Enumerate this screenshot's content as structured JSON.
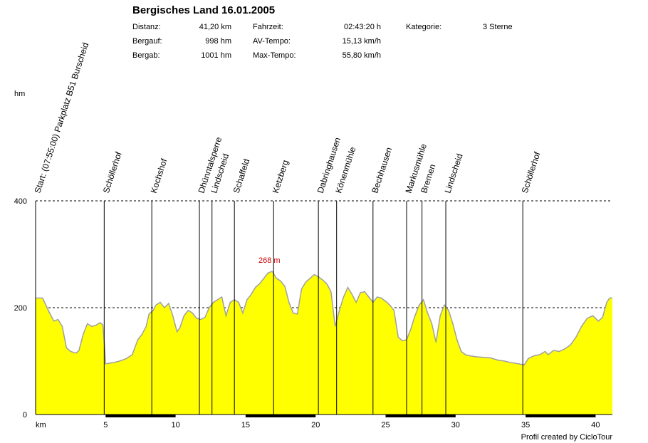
{
  "header": {
    "title": "Bergisches Land 16.01.2005",
    "stats": [
      {
        "label": "Distanz:",
        "value": "41,20 km"
      },
      {
        "label": "Bergauf:",
        "value": "998 hm"
      },
      {
        "label": "Bergab:",
        "value": "1001 hm"
      },
      {
        "label": "Fahrzeit:",
        "value": "02:43:20 h"
      },
      {
        "label": "AV-Tempo:",
        "value": "15,13 km/h"
      },
      {
        "label": "Max-Tempo:",
        "value": "55,80 km/h"
      },
      {
        "label": "Kategorie:",
        "value": "3 Sterne"
      }
    ]
  },
  "footer": "Profil created by CicloTour",
  "colors": {
    "fill": "#ffff00",
    "outline": "#a0a0a0",
    "max_label": "#cc0000"
  },
  "chart_data": {
    "type": "area",
    "title": "Bergisches Land 16.01.2005",
    "ylabel": "hm",
    "xlabel": "km",
    "xlim": [
      0,
      41.2
    ],
    "ylim": [
      0,
      400
    ],
    "yticks": [
      0,
      200,
      400
    ],
    "xticks": [
      5,
      10,
      15,
      20,
      25,
      30,
      35,
      40
    ],
    "grid_dashed_at": [
      200,
      400
    ],
    "max_label": {
      "text": "268 m",
      "x": 16.9,
      "y": 268
    },
    "profile": [
      [
        0.0,
        218
      ],
      [
        0.5,
        218
      ],
      [
        1.0,
        190
      ],
      [
        1.3,
        175
      ],
      [
        1.6,
        178
      ],
      [
        1.9,
        165
      ],
      [
        2.2,
        125
      ],
      [
        2.5,
        118
      ],
      [
        2.9,
        115
      ],
      [
        3.1,
        120
      ],
      [
        3.4,
        150
      ],
      [
        3.7,
        170
      ],
      [
        4.0,
        165
      ],
      [
        4.3,
        167
      ],
      [
        4.6,
        172
      ],
      [
        4.8,
        168
      ],
      [
        4.95,
        120
      ],
      [
        5.0,
        95
      ],
      [
        5.5,
        97
      ],
      [
        6.0,
        100
      ],
      [
        6.5,
        105
      ],
      [
        6.9,
        112
      ],
      [
        7.3,
        140
      ],
      [
        7.6,
        150
      ],
      [
        7.9,
        165
      ],
      [
        8.1,
        188
      ],
      [
        8.4,
        195
      ],
      [
        8.6,
        205
      ],
      [
        8.9,
        210
      ],
      [
        9.2,
        200
      ],
      [
        9.5,
        208
      ],
      [
        9.8,
        185
      ],
      [
        10.1,
        155
      ],
      [
        10.3,
        162
      ],
      [
        10.6,
        185
      ],
      [
        10.9,
        195
      ],
      [
        11.2,
        190
      ],
      [
        11.5,
        180
      ],
      [
        11.8,
        178
      ],
      [
        12.1,
        182
      ],
      [
        12.4,
        200
      ],
      [
        12.7,
        210
      ],
      [
        13.0,
        215
      ],
      [
        13.3,
        220
      ],
      [
        13.6,
        185
      ],
      [
        13.9,
        210
      ],
      [
        14.2,
        215
      ],
      [
        14.5,
        210
      ],
      [
        14.8,
        190
      ],
      [
        15.1,
        215
      ],
      [
        15.4,
        225
      ],
      [
        15.7,
        238
      ],
      [
        16.0,
        245
      ],
      [
        16.3,
        255
      ],
      [
        16.6,
        265
      ],
      [
        16.9,
        268
      ],
      [
        17.2,
        255
      ],
      [
        17.5,
        250
      ],
      [
        17.8,
        240
      ],
      [
        18.1,
        210
      ],
      [
        18.4,
        190
      ],
      [
        18.7,
        188
      ],
      [
        19.0,
        235
      ],
      [
        19.3,
        248
      ],
      [
        19.6,
        255
      ],
      [
        19.9,
        262
      ],
      [
        20.2,
        258
      ],
      [
        20.5,
        252
      ],
      [
        20.8,
        245
      ],
      [
        21.1,
        230
      ],
      [
        21.4,
        165
      ],
      [
        21.7,
        195
      ],
      [
        22.0,
        220
      ],
      [
        22.3,
        238
      ],
      [
        22.6,
        225
      ],
      [
        22.9,
        210
      ],
      [
        23.2,
        228
      ],
      [
        23.5,
        230
      ],
      [
        23.8,
        220
      ],
      [
        24.1,
        210
      ],
      [
        24.4,
        220
      ],
      [
        24.7,
        218
      ],
      [
        25.0,
        212
      ],
      [
        25.3,
        205
      ],
      [
        25.6,
        195
      ],
      [
        25.9,
        145
      ],
      [
        26.2,
        138
      ],
      [
        26.5,
        140
      ],
      [
        26.8,
        160
      ],
      [
        27.1,
        185
      ],
      [
        27.4,
        205
      ],
      [
        27.7,
        215
      ],
      [
        28.0,
        190
      ],
      [
        28.3,
        170
      ],
      [
        28.6,
        135
      ],
      [
        28.9,
        185
      ],
      [
        29.2,
        205
      ],
      [
        29.5,
        195
      ],
      [
        29.8,
        170
      ],
      [
        30.1,
        140
      ],
      [
        30.4,
        118
      ],
      [
        30.7,
        112
      ],
      [
        31.0,
        110
      ],
      [
        31.5,
        108
      ],
      [
        32.0,
        107
      ],
      [
        32.5,
        106
      ],
      [
        33.0,
        102
      ],
      [
        33.5,
        100
      ],
      [
        34.0,
        97
      ],
      [
        34.5,
        95
      ],
      [
        34.9,
        93
      ],
      [
        35.2,
        105
      ],
      [
        35.6,
        110
      ],
      [
        36.0,
        112
      ],
      [
        36.4,
        118
      ],
      [
        36.6,
        112
      ],
      [
        37.0,
        120
      ],
      [
        37.4,
        118
      ],
      [
        37.8,
        123
      ],
      [
        38.2,
        130
      ],
      [
        38.6,
        145
      ],
      [
        39.0,
        165
      ],
      [
        39.4,
        180
      ],
      [
        39.8,
        185
      ],
      [
        40.2,
        175
      ],
      [
        40.5,
        182
      ],
      [
        40.8,
        210
      ],
      [
        41.0,
        218
      ],
      [
        41.2,
        218
      ]
    ],
    "waypoints": [
      {
        "name": "Start: (07:55:00) Parkplatz B51 Burscheid",
        "km": 0.0
      },
      {
        "name": "Schöllerhof",
        "km": 4.9
      },
      {
        "name": "Kochshof",
        "km": 8.3
      },
      {
        "name": "Dhünntalsperre",
        "km": 11.7
      },
      {
        "name": "Lindscheid",
        "km": 12.6
      },
      {
        "name": "Schaffeld",
        "km": 14.2
      },
      {
        "name": "Ketzberg",
        "km": 17.0
      },
      {
        "name": "Dabringhausen",
        "km": 20.2
      },
      {
        "name": "Könenmühle",
        "km": 21.5
      },
      {
        "name": "Bechhausen",
        "km": 24.1
      },
      {
        "name": "Markusmühle",
        "km": 26.5
      },
      {
        "name": "Bremen",
        "km": 27.6
      },
      {
        "name": "Lindscheid",
        "km": 29.3
      },
      {
        "name": "Schöllerhof",
        "km": 34.8
      }
    ]
  }
}
